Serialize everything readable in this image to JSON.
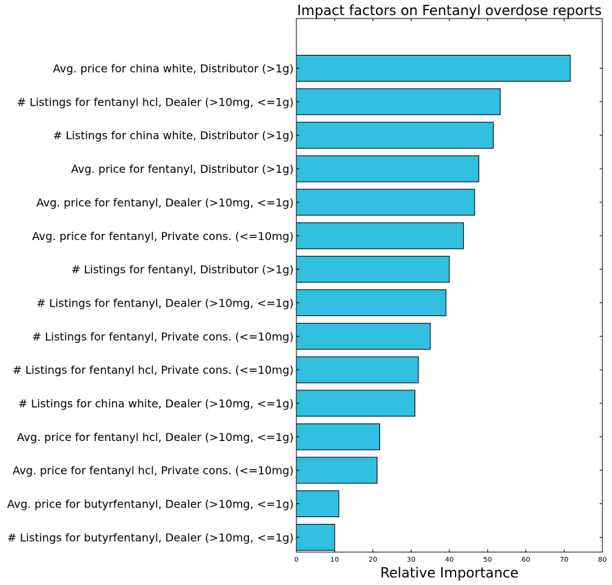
{
  "chart_data": {
    "type": "bar",
    "orientation": "horizontal",
    "title": "Impact factors on Fentanyl overdose reports",
    "xlabel": "Relative Importance",
    "ylabel": "",
    "xlim": [
      0,
      80
    ],
    "xticks": [
      0,
      10,
      20,
      30,
      40,
      50,
      60,
      70,
      80
    ],
    "grid": false,
    "bar_color": "#31C0E0",
    "bar_edge_color": "#000000",
    "categories": [
      "Avg. price for china white, Distributor (>1g)",
      "# Listings for fentanyl hcl, Dealer (>10mg, <=1g)",
      "# Listings for china white, Distributor (>1g)",
      "Avg. price for fentanyl, Distributor (>1g)",
      "Avg. price for fentanyl, Dealer (>10mg, <=1g)",
      "Avg. price for fentanyl, Private cons. (<=10mg)",
      "# Listings for fentanyl, Distributor (>1g)",
      "# Listings for fentanyl, Dealer (>10mg, <=1g)",
      "# Listings for fentanyl, Private cons. (<=10mg)",
      "# Listings for fentanyl hcl, Private cons. (<=10mg)",
      "# Listings for china white, Dealer (>10mg, <=1g)",
      "Avg. price for fentanyl hcl, Dealer (>10mg, <=1g)",
      "Avg. price for fentanyl hcl, Private cons. (<=10mg)",
      "Avg. price for butyrfentanyl, Dealer (>10mg, <=1g)",
      "# Listings for butyrfentanyl, Dealer (>10mg, <=1g)"
    ],
    "values": [
      71.6,
      53.3,
      51.5,
      47.7,
      46.6,
      43.7,
      40.0,
      39.1,
      35.0,
      31.9,
      31.0,
      21.8,
      21.1,
      11.1,
      10.0
    ]
  }
}
